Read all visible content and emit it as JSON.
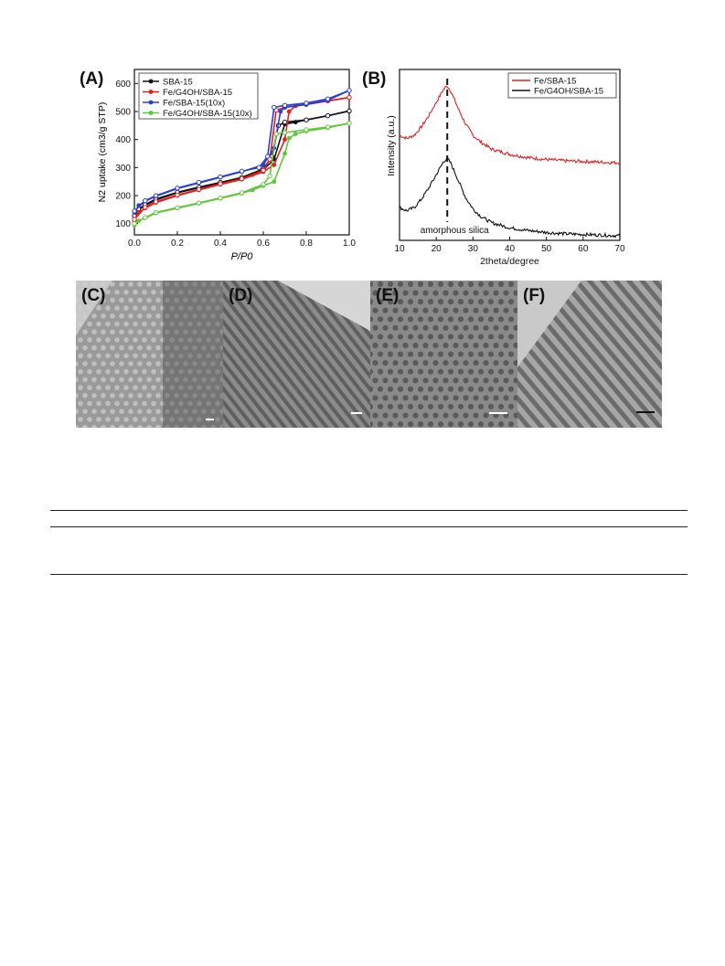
{
  "panels": {
    "A": {
      "label": "(A)"
    },
    "B": {
      "label": "(B)"
    },
    "C": {
      "label": "(C)"
    },
    "D": {
      "label": "(D)"
    },
    "E": {
      "label": "(E)"
    },
    "F": {
      "label": "(F)"
    }
  },
  "chart_data": [
    {
      "type": "line",
      "panel": "A",
      "xlabel": "P/P0",
      "ylabel": "N2 uptake (cm3/g STP)",
      "xlim": [
        0.0,
        1.0
      ],
      "ylim": [
        60,
        650
      ],
      "xticks": [
        "0.0",
        "0.2",
        "0.4",
        "0.6",
        "0.8",
        "1.0"
      ],
      "yticks": [
        "100",
        "200",
        "300",
        "400",
        "500",
        "600"
      ],
      "legend_position": "top-left",
      "series": [
        {
          "name": "SBA-15",
          "color": "#111111",
          "adsorption": [
            [
              0.0,
              125
            ],
            [
              0.02,
              150
            ],
            [
              0.05,
              165
            ],
            [
              0.1,
              185
            ],
            [
              0.2,
              210
            ],
            [
              0.3,
              228
            ],
            [
              0.4,
              245
            ],
            [
              0.5,
              263
            ],
            [
              0.55,
              275
            ],
            [
              0.6,
              292
            ],
            [
              0.65,
              330
            ],
            [
              0.7,
              455
            ],
            [
              0.75,
              462
            ],
            [
              0.8,
              470
            ],
            [
              0.9,
              485
            ],
            [
              1.0,
              502
            ]
          ],
          "desorption": [
            [
              1.0,
              502
            ],
            [
              0.9,
              485
            ],
            [
              0.8,
              470
            ],
            [
              0.7,
              462
            ],
            [
              0.67,
              450
            ],
            [
              0.64,
              340
            ],
            [
              0.6,
              295
            ],
            [
              0.5,
              265
            ],
            [
              0.4,
              247
            ],
            [
              0.3,
              230
            ],
            [
              0.2,
              212
            ],
            [
              0.1,
              188
            ],
            [
              0.05,
              168
            ],
            [
              0.02,
              152
            ],
            [
              0.0,
              128
            ]
          ]
        },
        {
          "name": "Fe/G4OH/SBA-15",
          "color": "#e02020",
          "adsorption": [
            [
              0.0,
              110
            ],
            [
              0.02,
              140
            ],
            [
              0.05,
              155
            ],
            [
              0.1,
              175
            ],
            [
              0.2,
              200
            ],
            [
              0.3,
              220
            ],
            [
              0.4,
              240
            ],
            [
              0.5,
              258
            ],
            [
              0.6,
              285
            ],
            [
              0.65,
              310
            ],
            [
              0.7,
              400
            ],
            [
              0.72,
              500
            ],
            [
              0.75,
              520
            ],
            [
              0.8,
              525
            ],
            [
              0.9,
              538
            ],
            [
              1.0,
              550
            ]
          ],
          "desorption": [
            [
              1.0,
              550
            ],
            [
              0.9,
              538
            ],
            [
              0.8,
              525
            ],
            [
              0.7,
              515
            ],
            [
              0.66,
              505
            ],
            [
              0.63,
              330
            ],
            [
              0.6,
              290
            ],
            [
              0.5,
              260
            ],
            [
              0.4,
              242
            ],
            [
              0.3,
              222
            ],
            [
              0.2,
              202
            ],
            [
              0.1,
              178
            ],
            [
              0.05,
              158
            ],
            [
              0.0,
              115
            ]
          ]
        },
        {
          "name": "Fe/SBA-15(10x)",
          "color": "#2a3fd0",
          "adsorption": [
            [
              0.0,
              140
            ],
            [
              0.02,
              165
            ],
            [
              0.05,
              180
            ],
            [
              0.1,
              198
            ],
            [
              0.2,
              225
            ],
            [
              0.3,
              245
            ],
            [
              0.4,
              265
            ],
            [
              0.5,
              285
            ],
            [
              0.6,
              310
            ],
            [
              0.65,
              370
            ],
            [
              0.68,
              500
            ],
            [
              0.7,
              515
            ],
            [
              0.8,
              525
            ],
            [
              0.9,
              540
            ],
            [
              1.0,
              575
            ]
          ],
          "desorption": [
            [
              1.0,
              575
            ],
            [
              0.9,
              545
            ],
            [
              0.8,
              530
            ],
            [
              0.7,
              522
            ],
            [
              0.65,
              515
            ],
            [
              0.62,
              340
            ],
            [
              0.58,
              300
            ],
            [
              0.5,
              287
            ],
            [
              0.4,
              267
            ],
            [
              0.3,
              247
            ],
            [
              0.2,
              227
            ],
            [
              0.1,
              200
            ],
            [
              0.05,
              182
            ],
            [
              0.0,
              145
            ]
          ]
        },
        {
          "name": "Fe/G4OH/SBA-15(10x)",
          "color": "#5ec83a",
          "adsorption": [
            [
              0.0,
              95
            ],
            [
              0.02,
              110
            ],
            [
              0.05,
              120
            ],
            [
              0.1,
              138
            ],
            [
              0.2,
              155
            ],
            [
              0.3,
              172
            ],
            [
              0.4,
              190
            ],
            [
              0.5,
              208
            ],
            [
              0.55,
              220
            ],
            [
              0.6,
              235
            ],
            [
              0.65,
              250
            ],
            [
              0.7,
              350
            ],
            [
              0.72,
              405
            ],
            [
              0.75,
              420
            ],
            [
              0.8,
              430
            ],
            [
              0.9,
              442
            ],
            [
              1.0,
              458
            ]
          ],
          "desorption": [
            [
              1.0,
              458
            ],
            [
              0.9,
              445
            ],
            [
              0.8,
              435
            ],
            [
              0.7,
              425
            ],
            [
              0.66,
              420
            ],
            [
              0.63,
              270
            ],
            [
              0.6,
              240
            ],
            [
              0.5,
              210
            ],
            [
              0.4,
              192
            ],
            [
              0.3,
              174
            ],
            [
              0.2,
              157
            ],
            [
              0.1,
              140
            ],
            [
              0.05,
              122
            ],
            [
              0.0,
              100
            ]
          ]
        }
      ]
    },
    {
      "type": "line",
      "panel": "B",
      "xlabel": "2theta/degree",
      "ylabel": "Intensity (a.u.)",
      "xlim": [
        10,
        70
      ],
      "xticks": [
        "10",
        "20",
        "30",
        "40",
        "50",
        "60",
        "70"
      ],
      "legend_position": "top-right",
      "annotations": [
        {
          "text": "amorphous silica",
          "x": 23
        }
      ],
      "reference_line": {
        "x": 23,
        "style": "dashed"
      },
      "series": [
        {
          "name": "Fe/SBA-15",
          "color": "#e02020",
          "offset": 1.0,
          "x": [
            10,
            12,
            14,
            16,
            18,
            20,
            22,
            23,
            24,
            26,
            28,
            30,
            32,
            35,
            40,
            45,
            50,
            55,
            60,
            65,
            70
          ],
          "y": [
            1.55,
            1.5,
            1.55,
            1.68,
            1.85,
            2.05,
            2.25,
            2.3,
            2.22,
            1.95,
            1.72,
            1.55,
            1.45,
            1.34,
            1.26,
            1.21,
            1.18,
            1.16,
            1.15,
            1.14,
            1.13
          ]
        },
        {
          "name": "Fe/G4OH/SBA-15",
          "color": "#111111",
          "offset": 0.0,
          "x": [
            10,
            12,
            14,
            16,
            18,
            20,
            22,
            23,
            24,
            26,
            28,
            30,
            32,
            35,
            40,
            45,
            50,
            55,
            60,
            65,
            70
          ],
          "y": [
            0.45,
            0.4,
            0.45,
            0.58,
            0.75,
            0.95,
            1.15,
            1.2,
            1.12,
            0.86,
            0.6,
            0.43,
            0.32,
            0.22,
            0.14,
            0.1,
            0.07,
            0.05,
            0.04,
            0.03,
            0.02
          ]
        }
      ]
    }
  ],
  "tem_images": [
    {
      "label": "(C)",
      "pattern": "hexagonal-pores",
      "tone": "#9a9a9a",
      "scale_bar_color": "white"
    },
    {
      "label": "(D)",
      "pattern": "parallel-channels",
      "tone": "#8c8c8c",
      "scale_bar_color": "white"
    },
    {
      "label": "(E)",
      "pattern": "hexagonal-pores",
      "tone": "#8a8a8a",
      "scale_bar_color": "white"
    },
    {
      "label": "(F)",
      "pattern": "parallel-channels",
      "tone": "#a6a6a6",
      "scale_bar_color": "dark"
    }
  ]
}
